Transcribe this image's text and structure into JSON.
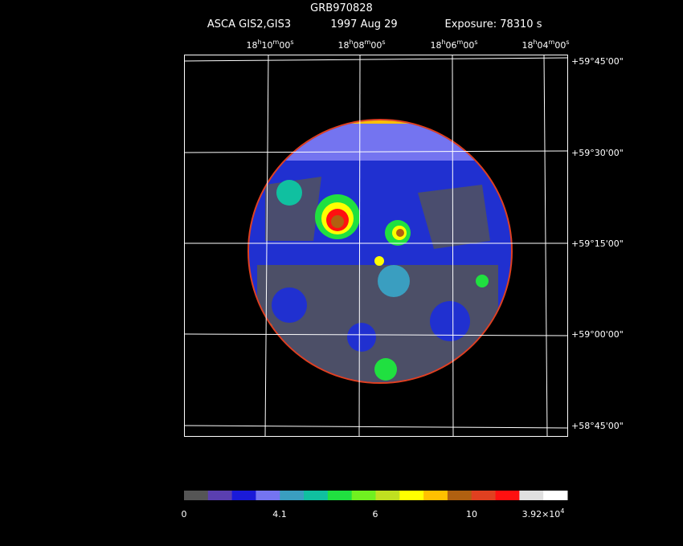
{
  "header": {
    "title": "GRB970828",
    "mission": "ASCA GIS2,GIS3",
    "date": "1997 Aug 29",
    "exposure": "Exposure: 78310 s"
  },
  "ra_labels": [
    [
      "18",
      "h",
      "10",
      "m",
      "00",
      "s"
    ],
    [
      "18",
      "h",
      "08",
      "m",
      "00",
      "s"
    ],
    [
      "18",
      "h",
      "06",
      "m",
      "00",
      "s"
    ],
    [
      "18",
      "h",
      "04",
      "m",
      "00",
      "s"
    ]
  ],
  "dec_labels": [
    "+59°45'00\"",
    "+59°30'00\"",
    "+59°15'00\"",
    "+59°00'00\"",
    "+58°45'00\""
  ],
  "colorbar": {
    "colors": [
      "#555555",
      "#5a3fb0",
      "#1a1ad8",
      "#7474f0",
      "#3a9ec0",
      "#10c0a0",
      "#20e040",
      "#70f020",
      "#c0e020",
      "#ffff00",
      "#ffc000",
      "#b06010",
      "#e04020",
      "#ff1010",
      "#e0e0e0",
      "#ffffff"
    ],
    "labels": [
      [
        "0"
      ],
      [
        "4.1"
      ],
      [
        "6"
      ],
      [
        "10"
      ],
      [
        "3.92×10",
        "4"
      ]
    ]
  }
}
